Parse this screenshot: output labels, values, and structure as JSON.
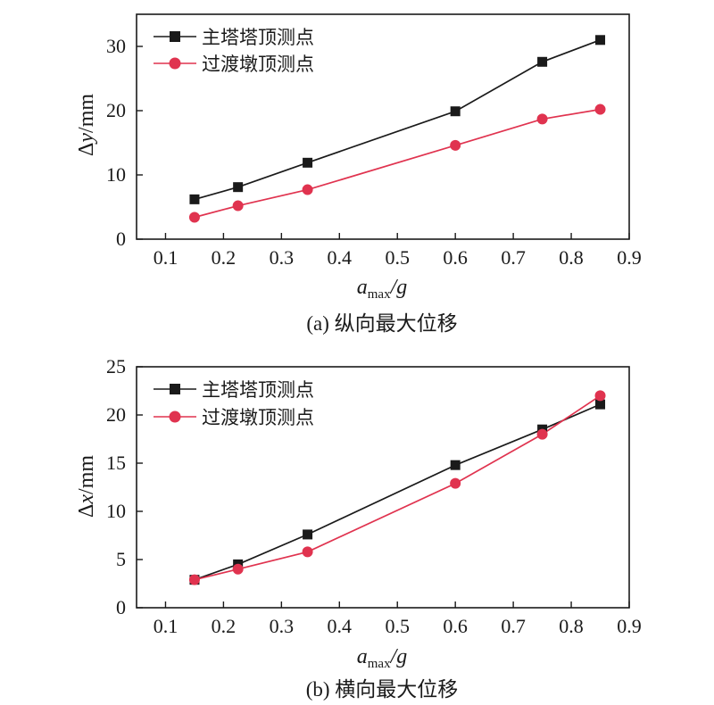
{
  "chart_data": [
    {
      "type": "line",
      "caption": "(a) 纵向最大位移",
      "xlabel": "a_max/g",
      "xlabel_main": "a",
      "xlabel_sub": "max",
      "xlabel_tail": "/g",
      "ylabel": "Δy/mm",
      "ylabel_prefix": "Δ",
      "ylabel_var": "y",
      "ylabel_unit": "/mm",
      "xlim": [
        0.05,
        0.9
      ],
      "ylim": [
        0,
        35
      ],
      "xticks": [
        0.1,
        0.2,
        0.3,
        0.4,
        0.5,
        0.6,
        0.7,
        0.8,
        0.9
      ],
      "xtick_labels": [
        "0.1",
        "0.2",
        "0.3",
        "0.4",
        "0.5",
        "0.6",
        "0.7",
        "0.8",
        "0.9"
      ],
      "yticks": [
        0,
        10,
        20,
        30
      ],
      "ytick_labels": [
        "0",
        "10",
        "20",
        "30"
      ],
      "legend_position": "top-left",
      "series": [
        {
          "name": "主塔塔顶测点",
          "marker": "square",
          "color": "#1a1a1a",
          "x": [
            0.15,
            0.225,
            0.345,
            0.6,
            0.75,
            0.85
          ],
          "y": [
            6.2,
            8.1,
            11.9,
            19.9,
            27.6,
            31.0
          ]
        },
        {
          "name": "过渡墩顶测点",
          "marker": "circle",
          "color": "#e0334f",
          "x": [
            0.15,
            0.225,
            0.345,
            0.6,
            0.75,
            0.85
          ],
          "y": [
            3.4,
            5.2,
            7.7,
            14.6,
            18.7,
            20.2
          ]
        }
      ]
    },
    {
      "type": "line",
      "caption": "(b) 横向最大位移",
      "xlabel": "a_max/g",
      "xlabel_main": "a",
      "xlabel_sub": "max",
      "xlabel_tail": "/g",
      "ylabel": "Δx/mm",
      "ylabel_prefix": "Δ",
      "ylabel_var": "x",
      "ylabel_unit": "/mm",
      "xlim": [
        0.05,
        0.9
      ],
      "ylim": [
        0,
        25
      ],
      "xticks": [
        0.1,
        0.2,
        0.3,
        0.4,
        0.5,
        0.6,
        0.7,
        0.8,
        0.9
      ],
      "xtick_labels": [
        "0.1",
        "0.2",
        "0.3",
        "0.4",
        "0.5",
        "0.6",
        "0.7",
        "0.8",
        "0.9"
      ],
      "yticks": [
        0,
        5,
        10,
        15,
        20,
        25
      ],
      "ytick_labels": [
        "0",
        "5",
        "10",
        "15",
        "20",
        "25"
      ],
      "legend_position": "top-left",
      "series": [
        {
          "name": "主塔塔顶测点",
          "marker": "square",
          "color": "#1a1a1a",
          "x": [
            0.15,
            0.225,
            0.345,
            0.6,
            0.75,
            0.85
          ],
          "y": [
            2.9,
            4.5,
            7.6,
            14.8,
            18.5,
            21.1
          ]
        },
        {
          "name": "过渡墩顶测点",
          "marker": "circle",
          "color": "#e0334f",
          "x": [
            0.15,
            0.225,
            0.345,
            0.6,
            0.75,
            0.85
          ],
          "y": [
            2.9,
            4.0,
            5.8,
            12.9,
            18.0,
            22.0
          ]
        }
      ]
    }
  ]
}
